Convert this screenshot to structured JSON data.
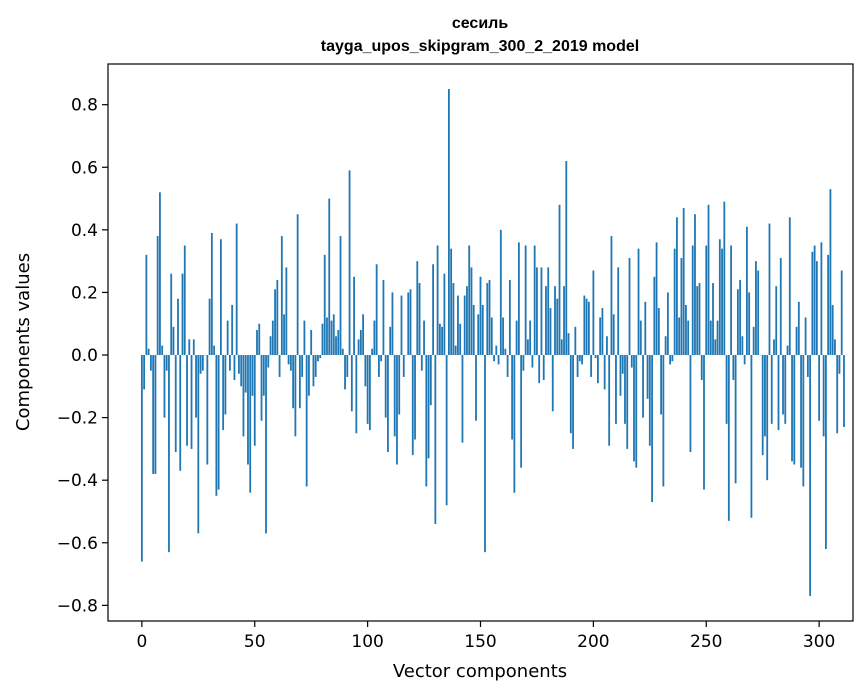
{
  "chart_data": {
    "type": "bar",
    "title": "сесиль",
    "subtitle": "tayga_upos_skipgram_300_2_2019 model",
    "xlabel": "Vector components",
    "ylabel": "Components values",
    "xlim": [
      -15,
      315
    ],
    "ylim": [
      -0.85,
      0.93
    ],
    "xticks": [
      0,
      50,
      100,
      150,
      200,
      250,
      300
    ],
    "xtick_labels": [
      "0",
      "50",
      "100",
      "150",
      "200",
      "250",
      "300"
    ],
    "yticks": [
      -0.8,
      -0.6,
      -0.4,
      -0.2,
      0.0,
      0.2,
      0.4,
      0.6,
      0.8
    ],
    "ytick_labels": [
      "−0.8",
      "−0.6",
      "−0.4",
      "−0.2",
      "0.0",
      "0.2",
      "0.4",
      "0.6",
      "0.8"
    ],
    "bar_color": "#1f77b4",
    "values": [
      -0.66,
      -0.11,
      0.32,
      0.02,
      -0.05,
      -0.38,
      -0.38,
      0.38,
      0.52,
      0.03,
      -0.2,
      -0.05,
      -0.63,
      0.26,
      0.09,
      -0.31,
      0.18,
      -0.37,
      0.26,
      0.35,
      -0.29,
      0.05,
      -0.3,
      0.05,
      -0.2,
      -0.57,
      -0.06,
      -0.05,
      0.0,
      -0.35,
      0.18,
      0.39,
      0.03,
      -0.45,
      -0.43,
      0.37,
      -0.24,
      -0.19,
      0.11,
      -0.05,
      0.16,
      -0.08,
      0.42,
      -0.06,
      -0.1,
      -0.26,
      -0.12,
      -0.35,
      -0.44,
      -0.13,
      -0.29,
      0.08,
      0.1,
      -0.21,
      -0.13,
      -0.57,
      -0.04,
      0.06,
      0.11,
      0.21,
      0.24,
      -0.07,
      0.38,
      0.13,
      0.28,
      -0.03,
      -0.05,
      -0.17,
      -0.26,
      0.45,
      -0.17,
      -0.07,
      0.11,
      -0.42,
      -0.13,
      0.08,
      -0.1,
      -0.07,
      -0.02,
      -0.01,
      0.1,
      0.32,
      0.12,
      0.5,
      0.11,
      0.13,
      0.06,
      0.08,
      0.38,
      0.02,
      -0.11,
      -0.07,
      0.59,
      -0.18,
      0.25,
      -0.25,
      0.05,
      0.08,
      0.13,
      -0.1,
      -0.22,
      -0.24,
      0.02,
      0.11,
      0.29,
      -0.07,
      -0.02,
      0.24,
      -0.2,
      -0.31,
      0.09,
      0.2,
      -0.26,
      -0.35,
      -0.19,
      0.19,
      -0.07,
      0.0,
      0.2,
      0.21,
      -0.32,
      -0.27,
      0.3,
      0.23,
      -0.05,
      0.11,
      -0.42,
      -0.33,
      -0.16,
      0.29,
      -0.54,
      0.35,
      0.1,
      0.09,
      0.26,
      -0.48,
      0.85,
      0.34,
      0.23,
      0.03,
      0.19,
      0.1,
      -0.28,
      0.19,
      0.22,
      0.35,
      0.28,
      0.16,
      -0.21,
      0.13,
      0.25,
      0.16,
      -0.63,
      0.23,
      0.24,
      0.12,
      -0.02,
      0.03,
      -0.03,
      0.4,
      0.12,
      0.02,
      -0.07,
      0.24,
      -0.27,
      -0.44,
      0.11,
      0.36,
      -0.36,
      -0.05,
      0.35,
      0.05,
      0.11,
      -0.04,
      0.35,
      0.28,
      -0.09,
      0.28,
      -0.08,
      0.22,
      0.28,
      0.15,
      -0.18,
      0.22,
      0.18,
      0.48,
      0.05,
      0.22,
      0.62,
      0.07,
      -0.25,
      -0.3,
      0.09,
      -0.07,
      -0.02,
      -0.03,
      0.19,
      0.18,
      0.17,
      -0.07,
      0.27,
      -0.01,
      -0.09,
      0.12,
      0.15,
      -0.11,
      0.06,
      -0.29,
      0.38,
      0.13,
      -0.22,
      0.28,
      -0.13,
      -0.06,
      -0.22,
      -0.3,
      0.31,
      -0.04,
      -0.34,
      -0.36,
      0.34,
      0.11,
      -0.2,
      0.17,
      -0.14,
      -0.29,
      -0.47,
      0.25,
      0.36,
      0.15,
      -0.19,
      -0.42,
      0.06,
      0.2,
      -0.03,
      -0.02,
      0.34,
      0.44,
      0.12,
      0.31,
      0.47,
      0.16,
      0.11,
      -0.31,
      0.35,
      0.45,
      0.22,
      0.23,
      -0.08,
      -0.43,
      0.35,
      0.48,
      0.11,
      0.23,
      0.05,
      0.11,
      0.37,
      0.34,
      0.49,
      -0.22,
      -0.53,
      0.35,
      -0.08,
      -0.41,
      0.21,
      0.24,
      0.06,
      -0.03,
      0.41,
      0.2,
      -0.52,
      0.09,
      0.3,
      0.27,
      0.0,
      -0.32,
      -0.26,
      -0.4,
      0.42,
      -0.22,
      0.05,
      0.22,
      -0.24,
      0.31,
      -0.19,
      -0.22,
      0.03,
      0.44,
      -0.34,
      -0.35,
      0.09,
      0.17,
      -0.36,
      -0.42,
      0.12,
      -0.07,
      -0.77,
      0.33,
      0.35,
      0.3,
      -0.21,
      0.36,
      -0.26,
      -0.62,
      0.32,
      0.53,
      0.16,
      0.05,
      -0.25,
      -0.06,
      0.27,
      -0.23
    ]
  }
}
